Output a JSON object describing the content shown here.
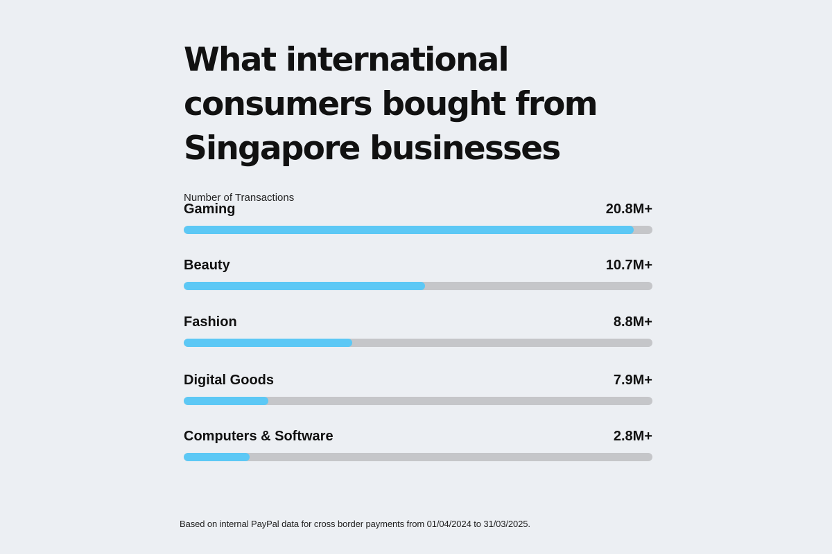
{
  "chart_data": {
    "type": "bar",
    "title_lines": [
      "What international",
      "consumers bought from",
      "Singapore businesses"
    ],
    "subtitle": "Number of Transactions",
    "categories": [
      "Gaming",
      "Beauty",
      "Fashion",
      "Digital Goods",
      "Computers & Software"
    ],
    "value_labels": [
      "20.8M+",
      "10.7M+",
      "8.8M+",
      "7.9M+",
      "2.8M+"
    ],
    "values": [
      20.8,
      10.7,
      8.8,
      7.9,
      2.8
    ],
    "bar_fill_fractions": [
      0.96,
      0.515,
      0.36,
      0.18,
      0.14
    ],
    "colors": {
      "fill": "#5cc8f5",
      "track": "#c5c6c9",
      "background": "#eceff3"
    }
  },
  "footnote": "Based on internal PayPal data for cross border payments from 01/04/2024 to 31/03/2025."
}
